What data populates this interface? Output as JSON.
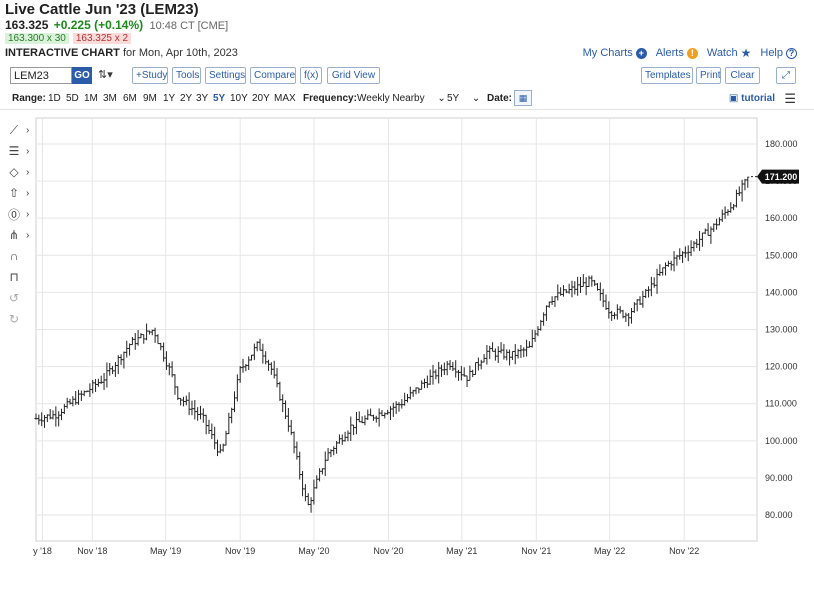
{
  "header": {
    "title": "Live Cattle Jun '23 (LEM23)",
    "last": "163.325",
    "change": "+0.225 (+0.14%)",
    "time": "10:48 CT [CME]",
    "bid": "163.300 x 30",
    "ask": "163.325 x 2",
    "chart_label": "INTERACTIVE CHART",
    "chart_date": "for Mon, Apr 10th, 2023"
  },
  "links": {
    "my_charts": "My Charts",
    "alerts": "Alerts",
    "watch": "Watch",
    "help": "Help"
  },
  "toolbar": {
    "symbol": "LEM23",
    "go": "GO",
    "study": "+Study",
    "tools": "Tools",
    "settings": "Settings",
    "compare": "Compare",
    "fx": "f(x)",
    "grid_view": "Grid View",
    "templates": "Templates",
    "print": "Print",
    "clear": "Clear"
  },
  "range_bar": {
    "range_label": "Range:",
    "ranges": [
      "1D",
      "5D",
      "1M",
      "3M",
      "6M",
      "9M",
      "1Y",
      "2Y",
      "3Y",
      "5Y",
      "10Y",
      "20Y",
      "MAX"
    ],
    "selected": "5Y",
    "frequency_label": "Frequency:",
    "frequency": "Weekly Nearby",
    "period": "5Y",
    "date_label": "Date:",
    "tutorial": "tutorial"
  },
  "side_tools": [
    "line-tool-icon",
    "fib-tool-icon",
    "shape-tool-icon",
    "arrow-tool-icon",
    "measure-tool-icon",
    "pattern-tool-icon",
    "magnet-icon",
    "lock-icon",
    "undo-icon",
    "redo-icon"
  ],
  "colors": {
    "accent": "#2a5ca8",
    "up": "#1a8a1a",
    "down": "#b23333",
    "bars": "#222222",
    "grid": "#e6e6e6"
  },
  "chart_data": {
    "type": "bar",
    "subtype": "ohlc",
    "frequency": "weekly",
    "ylim": [
      73,
      187
    ],
    "y_ticks": [
      80,
      90,
      100,
      110,
      120,
      130,
      140,
      150,
      160,
      170,
      180
    ],
    "y_tick_labels": [
      "80.000",
      "90.000",
      "100.000",
      "110.000",
      "120.000",
      "130.000",
      "140.000",
      "150.000",
      "160.000",
      "170.000",
      "180.000"
    ],
    "x_tick_labels": [
      "y '18",
      "Nov '18",
      "May '19",
      "Nov '19",
      "May '20",
      "Nov '20",
      "May '21",
      "Nov '21",
      "May '22",
      "Nov '22"
    ],
    "x_tick_dates": [
      "2018-07-01",
      "2018-11-01",
      "2019-05-01",
      "2019-11-01",
      "2020-05-01",
      "2020-11-01",
      "2021-05-01",
      "2021-11-01",
      "2022-05-01",
      "2022-11-01"
    ],
    "x_start": "2018-06-15",
    "x_end": "2023-04-10",
    "last_value": 171.2,
    "last_label": "171.200",
    "series": [
      {
        "dates": [
          "2018-06-15",
          "2018-08-01",
          "2018-10-01",
          "2018-12-01",
          "2019-02-01",
          "2019-04-01",
          "2019-05-15",
          "2019-06-01",
          "2019-08-01",
          "2019-09-15",
          "2019-11-01",
          "2019-12-15",
          "2020-01-15",
          "2020-03-01",
          "2020-04-15",
          "2020-06-01",
          "2020-08-01",
          "2020-10-01",
          "2020-12-01",
          "2021-02-01",
          "2021-04-01",
          "2021-05-15",
          "2021-07-01",
          "2021-09-01",
          "2021-10-15",
          "2021-12-01",
          "2022-02-01",
          "2022-03-15",
          "2022-05-01",
          "2022-06-15",
          "2022-08-01",
          "2022-09-15",
          "2022-11-15",
          "2023-01-15",
          "2023-03-01",
          "2023-04-10"
        ],
        "closes": [
          106,
          107,
          112,
          117,
          126,
          130,
          118,
          112,
          106,
          96,
          119,
          126,
          120,
          104,
          82,
          96,
          104,
          107,
          110,
          116,
          121,
          117,
          124,
          123,
          125,
          138,
          141,
          143,
          135,
          134,
          140,
          147,
          152,
          158,
          164,
          171.2
        ]
      }
    ]
  }
}
